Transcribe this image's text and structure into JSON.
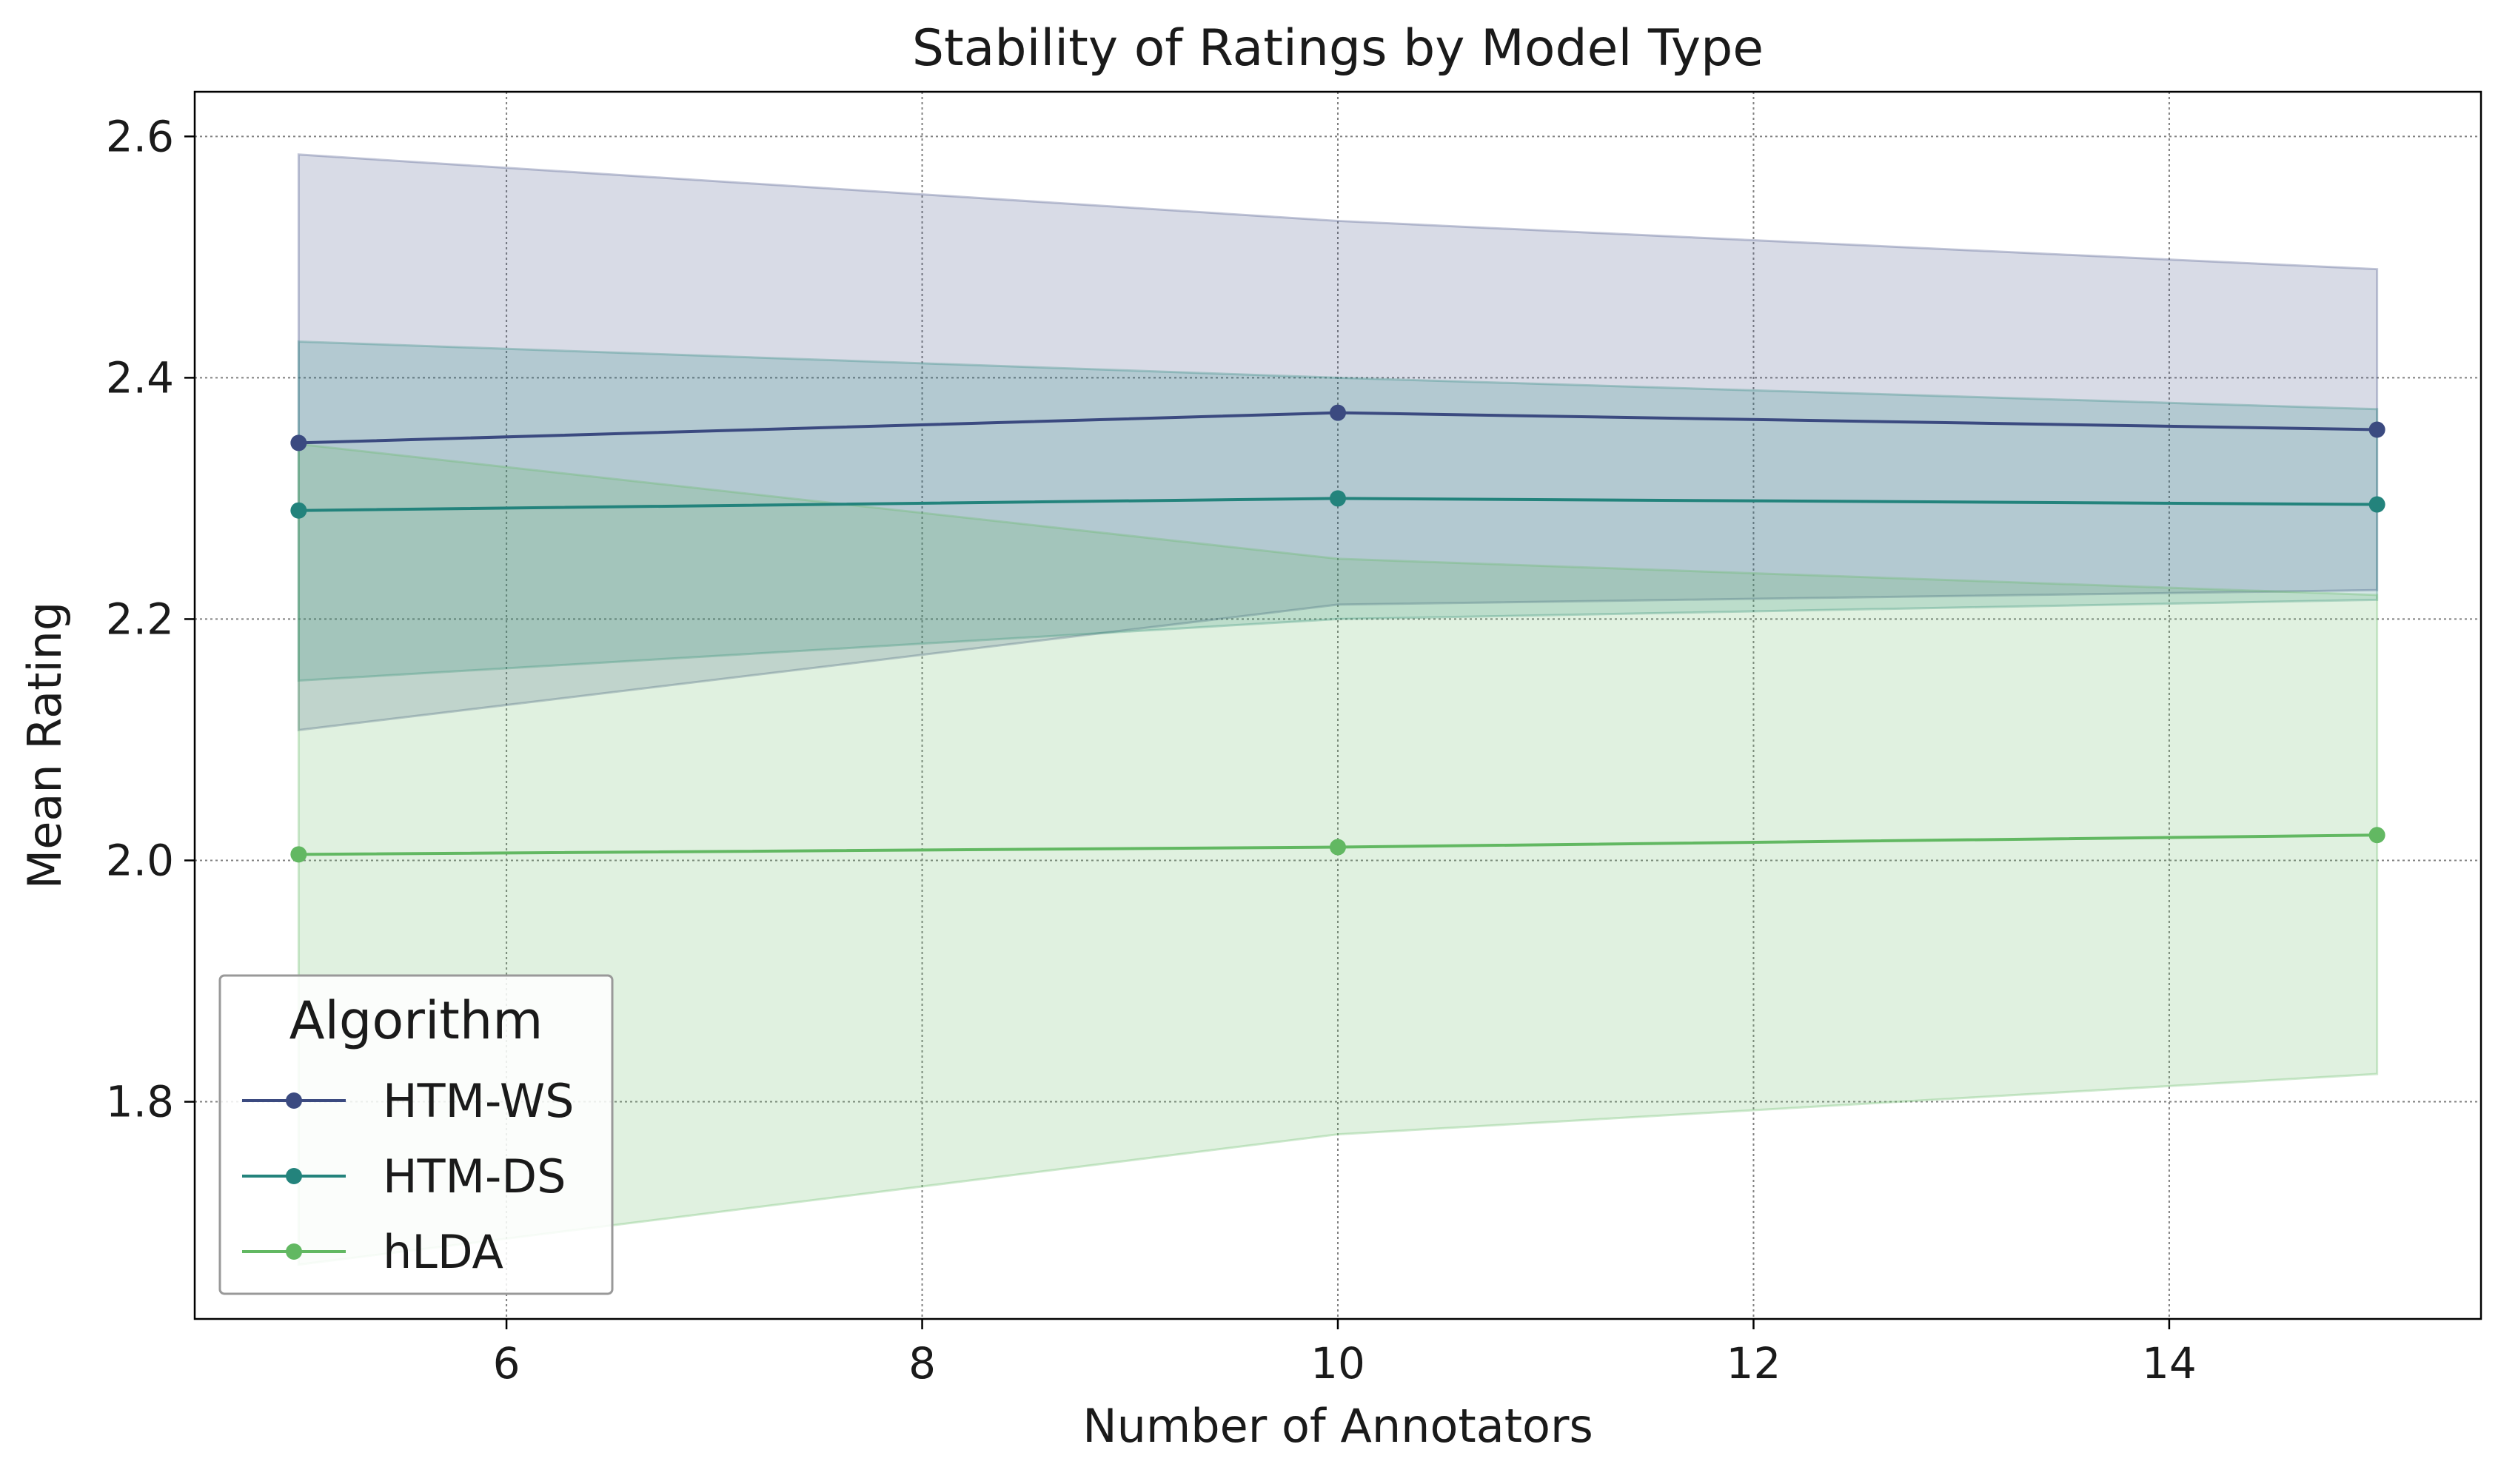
{
  "chart_data": {
    "type": "line",
    "title": "Stability of Ratings by Model Type",
    "xlabel": "Number of Annotators",
    "ylabel": "Mean Rating",
    "x": [
      5,
      10,
      15
    ],
    "xlim": [
      4.5,
      15.5
    ],
    "ylim": [
      1.62,
      2.637
    ],
    "xticks": [
      6,
      8,
      10,
      12,
      14
    ],
    "yticks": [
      1.8,
      2.0,
      2.2,
      2.4,
      2.6
    ],
    "grid": true,
    "legend": {
      "title": "Algorithm",
      "placement": "lower-left"
    },
    "series": [
      {
        "name": "HTM-WS",
        "color": "#3b4a80",
        "values": [
          2.346,
          2.371,
          2.357
        ],
        "band_upper": [
          2.585,
          2.53,
          2.49
        ],
        "band_lower": [
          2.108,
          2.212,
          2.224
        ]
      },
      {
        "name": "HTM-DS",
        "color": "#23837c",
        "values": [
          2.29,
          2.3,
          2.295
        ],
        "band_upper": [
          2.43,
          2.4,
          2.374
        ],
        "band_lower": [
          2.149,
          2.2,
          2.216
        ]
      },
      {
        "name": "hLDA",
        "color": "#62b862",
        "values": [
          2.005,
          2.011,
          2.021
        ],
        "band_upper": [
          2.345,
          2.25,
          2.22
        ],
        "band_lower": [
          1.665,
          1.773,
          1.823
        ]
      }
    ]
  }
}
